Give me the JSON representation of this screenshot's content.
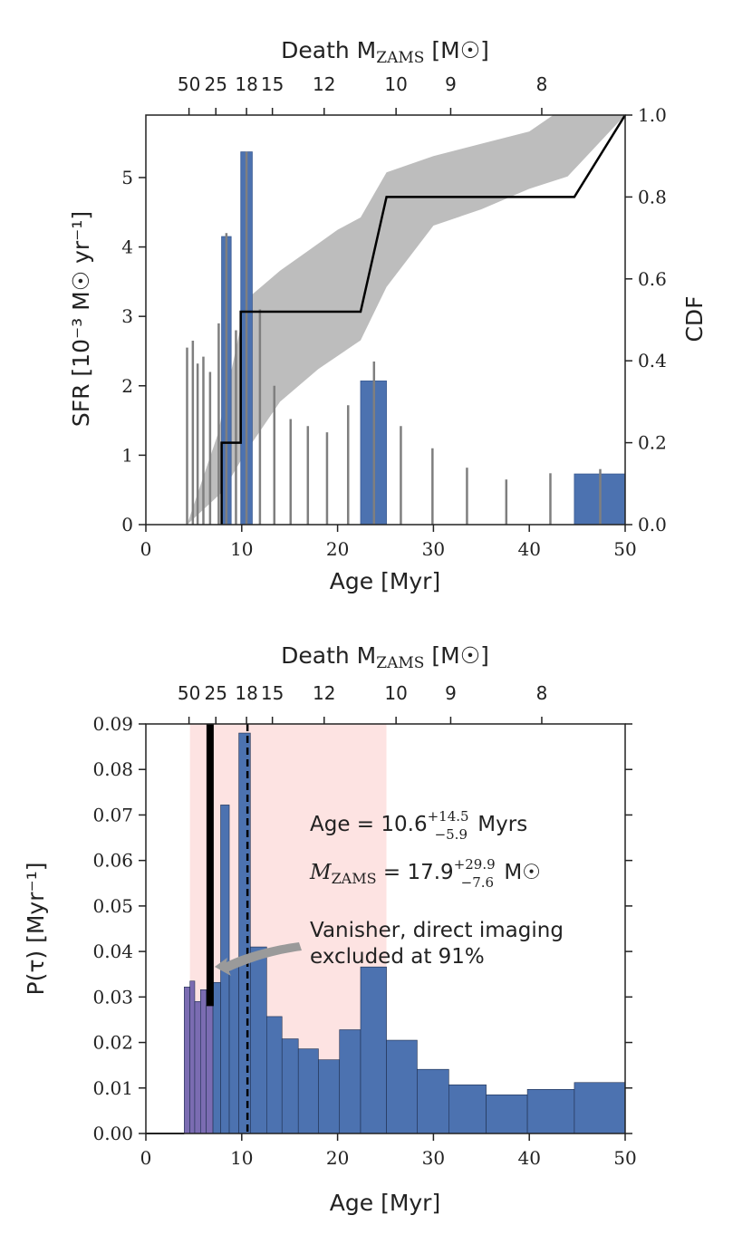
{
  "chart_data": [
    {
      "type": "bar",
      "name": "sfr-history",
      "xlabel": "Age [Myr]",
      "ylabel": "SFR [10⁻³ M☉ yr⁻¹]",
      "y2label": "CDF",
      "top_axis_label": "Death M",
      "top_axis_label_sub": "ZAMS",
      "top_axis_label_tail": " [M☉]",
      "xlim": [
        0,
        50
      ],
      "ylim": [
        0,
        5.9
      ],
      "y2lim": [
        0,
        1.0
      ],
      "x_ticks": [
        "0",
        "10",
        "20",
        "30",
        "40",
        "50"
      ],
      "y_ticks": [
        "0",
        "1",
        "2",
        "3",
        "4",
        "5"
      ],
      "y2_ticks": [
        "0.0",
        "0.2",
        "0.4",
        "0.6",
        "0.8",
        "1.0"
      ],
      "top_ticks": [
        {
          "label": "50",
          "age": 4.5
        },
        {
          "label": "25",
          "age": 7.3
        },
        {
          "label": "18",
          "age": 10.5
        },
        {
          "label": "15",
          "age": 13.2
        },
        {
          "label": "12",
          "age": 18.6
        },
        {
          "label": "10",
          "age": 26.1
        },
        {
          "label": "9",
          "age": 31.8
        },
        {
          "label": "8",
          "age": 41.3
        }
      ],
      "bars": [
        {
          "x0": 7.9,
          "x1": 8.9,
          "value": 4.15
        },
        {
          "x0": 9.9,
          "x1": 11.1,
          "value": 5.37
        },
        {
          "x0": 22.4,
          "x1": 25.1,
          "value": 2.07
        },
        {
          "x0": 44.7,
          "x1": 50.0,
          "value": 0.73
        }
      ],
      "bar_color": "#4c72b0",
      "error_bars": [
        {
          "x": 4.3,
          "hi": 2.55
        },
        {
          "x": 4.9,
          "hi": 2.65
        },
        {
          "x": 5.4,
          "hi": 2.32
        },
        {
          "x": 6.0,
          "hi": 2.42
        },
        {
          "x": 6.7,
          "hi": 2.2
        },
        {
          "x": 7.6,
          "hi": 2.9
        },
        {
          "x": 8.4,
          "hi": 4.2
        },
        {
          "x": 9.4,
          "hi": 2.8
        },
        {
          "x": 10.5,
          "hi": 5.37
        },
        {
          "x": 11.9,
          "hi": 3.1
        },
        {
          "x": 13.4,
          "hi": 2.0
        },
        {
          "x": 15.1,
          "hi": 1.52
        },
        {
          "x": 16.9,
          "hi": 1.42
        },
        {
          "x": 18.9,
          "hi": 1.33
        },
        {
          "x": 21.1,
          "hi": 1.72
        },
        {
          "x": 23.8,
          "hi": 2.35
        },
        {
          "x": 26.6,
          "hi": 1.42
        },
        {
          "x": 29.9,
          "hi": 1.1
        },
        {
          "x": 33.5,
          "hi": 0.82
        },
        {
          "x": 37.6,
          "hi": 0.65
        },
        {
          "x": 42.2,
          "hi": 0.74
        },
        {
          "x": 47.4,
          "hi": 0.8
        }
      ],
      "cdf_line": [
        [
          7.9,
          0.0
        ],
        [
          7.9,
          0.2
        ],
        [
          9.9,
          0.2
        ],
        [
          9.9,
          0.52
        ],
        [
          22.4,
          0.52
        ],
        [
          25.1,
          0.8
        ],
        [
          44.7,
          0.8
        ],
        [
          50.0,
          1.0
        ]
      ],
      "cdf_band_upper": [
        [
          4.3,
          0.0
        ],
        [
          7.5,
          0.22
        ],
        [
          10.5,
          0.55
        ],
        [
          14.0,
          0.62
        ],
        [
          17.0,
          0.67
        ],
        [
          20.0,
          0.72
        ],
        [
          22.4,
          0.75
        ],
        [
          25.1,
          0.86
        ],
        [
          30.0,
          0.9
        ],
        [
          35.0,
          0.93
        ],
        [
          40.0,
          0.96
        ],
        [
          42.5,
          1.0
        ],
        [
          50.0,
          1.0
        ]
      ],
      "cdf_band_lower": [
        [
          50.0,
          1.0
        ],
        [
          44.0,
          0.85
        ],
        [
          40.0,
          0.82
        ],
        [
          35.0,
          0.77
        ],
        [
          30.0,
          0.73
        ],
        [
          25.1,
          0.58
        ],
        [
          22.4,
          0.45
        ],
        [
          18.0,
          0.38
        ],
        [
          14.0,
          0.3
        ],
        [
          10.5,
          0.18
        ],
        [
          8.0,
          0.08
        ],
        [
          4.3,
          0.0
        ]
      ],
      "band_color": "#bdbdbd"
    },
    {
      "type": "bar",
      "name": "age-posterior",
      "xlabel": "Age [Myr]",
      "ylabel": "P(τ) [Myr⁻¹]",
      "top_axis_label": "Death M",
      "top_axis_label_sub": "ZAMS",
      "top_axis_label_tail": " [M☉]",
      "xlim": [
        0,
        50
      ],
      "ylim": [
        0,
        0.09
      ],
      "x_ticks": [
        "0",
        "10",
        "20",
        "30",
        "40",
        "50"
      ],
      "y_ticks": [
        "0.00",
        "0.01",
        "0.02",
        "0.03",
        "0.04",
        "0.05",
        "0.06",
        "0.07",
        "0.08",
        "0.09"
      ],
      "top_ticks": [
        {
          "label": "50",
          "age": 4.5
        },
        {
          "label": "25",
          "age": 7.3
        },
        {
          "label": "18",
          "age": 10.5
        },
        {
          "label": "15",
          "age": 13.2
        },
        {
          "label": "12",
          "age": 18.6
        },
        {
          "label": "10",
          "age": 26.1
        },
        {
          "label": "9",
          "age": 31.8
        },
        {
          "label": "8",
          "age": 41.3
        }
      ],
      "bins": [
        {
          "x0": 4.0,
          "x1": 4.6,
          "value": 0.0322,
          "excluded": true
        },
        {
          "x0": 4.6,
          "x1": 5.1,
          "value": 0.0335,
          "excluded": true
        },
        {
          "x0": 5.1,
          "x1": 5.7,
          "value": 0.029,
          "excluded": true
        },
        {
          "x0": 5.7,
          "x1": 6.3,
          "value": 0.0316,
          "excluded": true
        },
        {
          "x0": 6.3,
          "x1": 7.0,
          "value": 0.0282,
          "excluded": true
        },
        {
          "x0": 7.0,
          "x1": 7.8,
          "value": 0.0332,
          "excluded": false
        },
        {
          "x0": 7.8,
          "x1": 8.7,
          "value": 0.0722,
          "excluded": false
        },
        {
          "x0": 8.7,
          "x1": 9.7,
          "value": 0.037,
          "excluded": false
        },
        {
          "x0": 9.7,
          "x1": 10.9,
          "value": 0.088,
          "excluded": false
        },
        {
          "x0": 10.9,
          "x1": 12.6,
          "value": 0.041,
          "excluded": false
        },
        {
          "x0": 12.6,
          "x1": 14.2,
          "value": 0.0257,
          "excluded": false
        },
        {
          "x0": 14.2,
          "x1": 15.9,
          "value": 0.0208,
          "excluded": false
        },
        {
          "x0": 15.9,
          "x1": 18.0,
          "value": 0.0186,
          "excluded": false
        },
        {
          "x0": 18.0,
          "x1": 20.2,
          "value": 0.0162,
          "excluded": false
        },
        {
          "x0": 20.2,
          "x1": 22.4,
          "value": 0.0228,
          "excluded": false
        },
        {
          "x0": 22.4,
          "x1": 25.1,
          "value": 0.0366,
          "excluded": false
        },
        {
          "x0": 25.1,
          "x1": 28.3,
          "value": 0.0205,
          "excluded": false
        },
        {
          "x0": 28.3,
          "x1": 31.6,
          "value": 0.0141,
          "excluded": false
        },
        {
          "x0": 31.6,
          "x1": 35.5,
          "value": 0.0107,
          "excluded": false
        },
        {
          "x0": 35.5,
          "x1": 39.8,
          "value": 0.0085,
          "excluded": false
        },
        {
          "x0": 39.8,
          "x1": 44.7,
          "value": 0.0097,
          "excluded": false
        },
        {
          "x0": 44.7,
          "x1": 50.0,
          "value": 0.0112,
          "excluded": false
        }
      ],
      "bin_color": "#4c72b0",
      "excluded_color": "#7b6cb2",
      "shaded_region": [
        4.6,
        25.1
      ],
      "shaded_color": "#fde3e2",
      "solid_line": {
        "x": 6.7,
        "y0": 0.028,
        "y1": 0.09
      },
      "dashed_line": {
        "x": 10.6
      },
      "annotations": {
        "age_prefix": "Age = 10.6",
        "age_sup": "+14.5",
        "age_sub": "−5.9",
        "age_unit": " Myrs",
        "mass_var": "M",
        "mass_var_sub": "ZAMS",
        "mass_mid": " = 17.9",
        "mass_sup": "+29.9",
        "mass_sub": "−7.6",
        "mass_unit": " M☉",
        "vanisher_line1": "Vanisher, direct imaging",
        "vanisher_line2": "excluded at 91%"
      }
    }
  ]
}
